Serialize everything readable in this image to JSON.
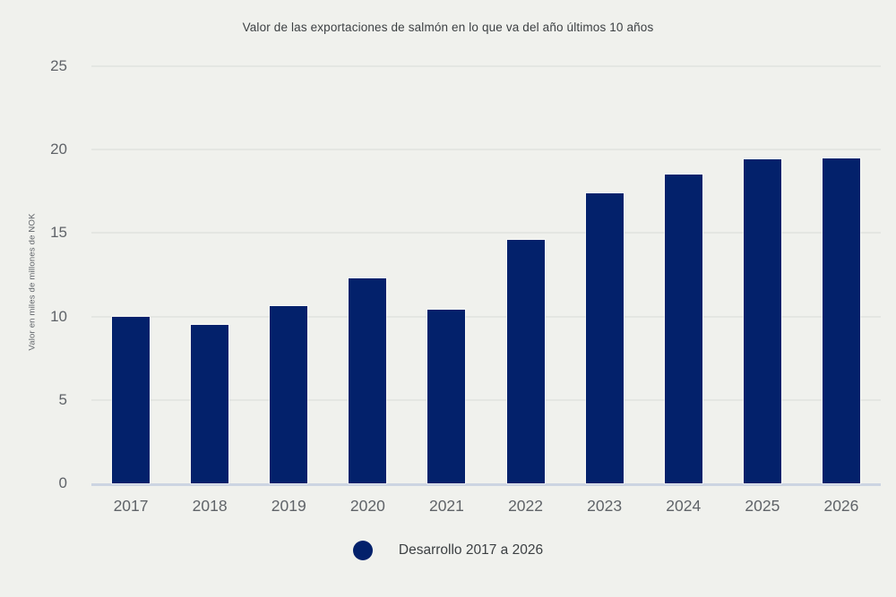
{
  "chart_data": {
    "type": "bar",
    "title": "Valor de las exportaciones de salmón en lo que va del año últimos 10 años",
    "ylabel": "Valor en miles de millones de NOK",
    "xlabel": "",
    "categories": [
      "2017",
      "2018",
      "2019",
      "2020",
      "2021",
      "2022",
      "2023",
      "2024",
      "2025",
      "2026"
    ],
    "series": [
      {
        "name": "Desarrollo 2017 a 2026",
        "values": [
          10.0,
          9.5,
          10.6,
          12.3,
          10.4,
          14.6,
          17.4,
          18.5,
          19.4,
          19.5
        ]
      }
    ],
    "ylim": [
      0,
      25
    ],
    "yticks": [
      0,
      5,
      10,
      15,
      20,
      25
    ],
    "grid": true,
    "legend_position": "bottom"
  },
  "legend": {
    "label": "Desarrollo 2017 a 2026",
    "marker_shape": "circle"
  },
  "colors": {
    "background": "#f0f1ed",
    "bar": "#03216b",
    "gridline": "#e4e6e2",
    "zero_line": "#ccd4e2",
    "tick_text": "#5f6368",
    "title_text": "#3c4043"
  }
}
